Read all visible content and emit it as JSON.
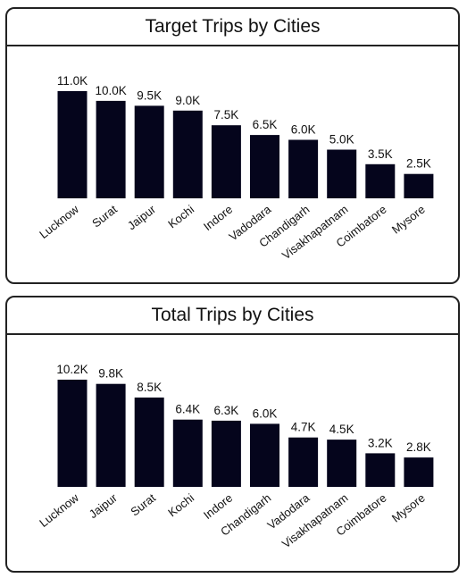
{
  "colors": {
    "bar": "#05051c",
    "border": "#222222",
    "text": "#111111"
  },
  "chart_data": [
    {
      "type": "bar",
      "title": "Target Trips by Cities",
      "categories": [
        "Lucknow",
        "Surat",
        "Jaipur",
        "Kochi",
        "Indore",
        "Vadodara",
        "Chandigarh",
        "Visakhapatnam",
        "Coimbatore",
        "Mysore"
      ],
      "values": [
        11000,
        10000,
        9500,
        9000,
        7500,
        6500,
        6000,
        5000,
        3500,
        2500
      ],
      "data_labels": [
        "11.0K",
        "10.0K",
        "9.5K",
        "9.0K",
        "7.5K",
        "6.5K",
        "6.0K",
        "5.0K",
        "3.5K",
        "2.5K"
      ],
      "xlabel": "",
      "ylabel": "",
      "ylim": [
        0,
        11000
      ],
      "grid": false,
      "legend": "none"
    },
    {
      "type": "bar",
      "title": "Total Trips by Cities",
      "categories": [
        "Lucknow",
        "Jaipur",
        "Surat",
        "Kochi",
        "Indore",
        "Chandigarh",
        "Vadodara",
        "Visakhapatnam",
        "Coimbatore",
        "Mysore"
      ],
      "values": [
        10200,
        9800,
        8500,
        6400,
        6300,
        6000,
        4700,
        4500,
        3200,
        2800
      ],
      "data_labels": [
        "10.2K",
        "9.8K",
        "8.5K",
        "6.4K",
        "6.3K",
        "6.0K",
        "4.7K",
        "4.5K",
        "3.2K",
        "2.8K"
      ],
      "xlabel": "",
      "ylabel": "",
      "ylim": [
        0,
        10200
      ],
      "grid": false,
      "legend": "none"
    }
  ]
}
